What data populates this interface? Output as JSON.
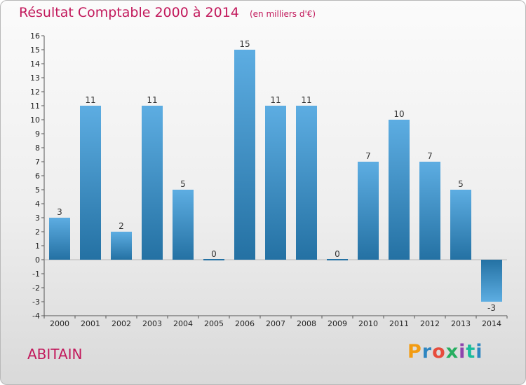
{
  "header": {
    "title": "Résultat Comptable 2000 à 2014",
    "subtitle": "(en milliers d'€)"
  },
  "footer": {
    "place": "ABITAIN",
    "logo_text": "Proxiti",
    "logo_colors": [
      "#f39c12",
      "#2e86c1",
      "#e74c3c",
      "#27ae60",
      "#8e44ad",
      "#1abc9c",
      "#2e86c1"
    ]
  },
  "chart_data": {
    "type": "bar",
    "categories": [
      "2000",
      "2001",
      "2002",
      "2003",
      "2004",
      "2005",
      "2006",
      "2007",
      "2008",
      "2009",
      "2010",
      "2011",
      "2012",
      "2013",
      "2014"
    ],
    "values": [
      3,
      11,
      2,
      11,
      5,
      0,
      15,
      11,
      11,
      0,
      7,
      10,
      7,
      5,
      -3
    ],
    "data_labels": [
      "3",
      "11",
      "2",
      "11",
      "5",
      "0",
      "15",
      "11",
      "11",
      "0",
      "7",
      "10",
      "7",
      "5",
      "-3"
    ],
    "ylim": [
      -4,
      16
    ],
    "yticks": [
      -4,
      -3,
      -2,
      -1,
      0,
      1,
      2,
      3,
      4,
      5,
      6,
      7,
      8,
      9,
      10,
      11,
      12,
      13,
      14,
      15,
      16
    ],
    "grid": false,
    "bar_color_light": "#5dade2",
    "bar_color_dark": "#2471a3"
  }
}
